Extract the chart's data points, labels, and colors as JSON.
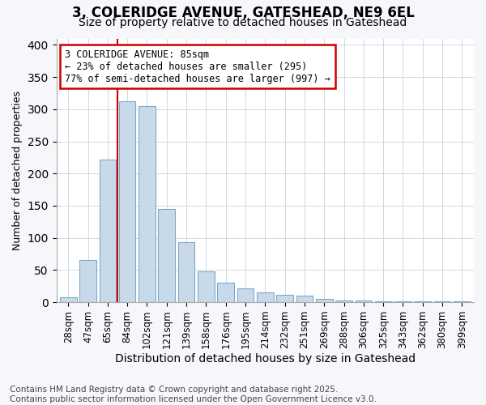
{
  "title": "3, COLERIDGE AVENUE, GATESHEAD, NE9 6EL",
  "subtitle": "Size of property relative to detached houses in Gateshead",
  "xlabel": "Distribution of detached houses by size in Gateshead",
  "ylabel": "Number of detached properties",
  "categories": [
    "28sqm",
    "47sqm",
    "65sqm",
    "84sqm",
    "102sqm",
    "121sqm",
    "139sqm",
    "158sqm",
    "176sqm",
    "195sqm",
    "214sqm",
    "232sqm",
    "251sqm",
    "269sqm",
    "288sqm",
    "306sqm",
    "325sqm",
    "343sqm",
    "362sqm",
    "380sqm",
    "399sqm"
  ],
  "values": [
    8,
    65,
    222,
    312,
    305,
    145,
    93,
    48,
    30,
    22,
    15,
    12,
    10,
    5,
    3,
    3,
    2,
    2,
    1,
    1,
    2
  ],
  "bar_color": "#c8daea",
  "bar_edge_color": "#7aaac8",
  "vline_index": 3,
  "annotation_line1": "3 COLERIDGE AVENUE: 85sqm",
  "annotation_line2": "← 23% of detached houses are smaller (295)",
  "annotation_line3": "77% of semi-detached houses are larger (997) →",
  "annotation_box_edge": "#cc0000",
  "vline_color": "#cc0000",
  "ylim_max": 410,
  "yticks": [
    0,
    50,
    100,
    150,
    200,
    250,
    300,
    350,
    400
  ],
  "footer1": "Contains HM Land Registry data © Crown copyright and database right 2025.",
  "footer2": "Contains public sector information licensed under the Open Government Licence v3.0.",
  "bg_color": "#f5f7fa",
  "plot_bg_color": "#ffffff",
  "title_fontsize": 12,
  "subtitle_fontsize": 10,
  "tick_fontsize": 8.5,
  "footer_fontsize": 7.5,
  "ylabel_fontsize": 9,
  "xlabel_fontsize": 10,
  "grid_color": "#d0d8e0"
}
